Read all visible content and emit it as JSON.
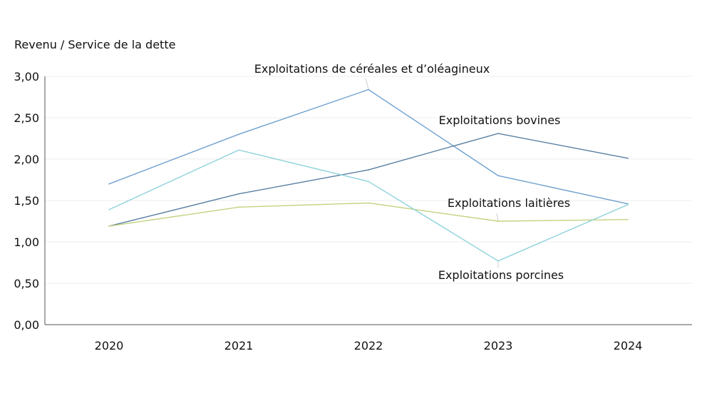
{
  "chart_data": {
    "type": "line",
    "ylabel": "Revenu / Service de la dette",
    "categories": [
      "2020",
      "2021",
      "2022",
      "2023",
      "2024"
    ],
    "ylim": [
      0,
      3
    ],
    "yticks": [
      "0,00",
      "0,50",
      "1,00",
      "1,50",
      "2,00",
      "2,50",
      "3,00"
    ],
    "grid": true,
    "series": [
      {
        "name": "Exploitations de céréales et d’oléagineux",
        "color": "#6fa0cf",
        "values": [
          1.7,
          2.3,
          2.84,
          1.8,
          1.46
        ]
      },
      {
        "name": "Exploitations bovines",
        "color": "#5a7fa3",
        "values": [
          1.19,
          1.58,
          1.87,
          2.31,
          2.01
        ]
      },
      {
        "name": "Exploitations laitières",
        "color": "#c3d27f",
        "values": [
          1.19,
          1.42,
          1.47,
          1.25,
          1.27
        ]
      },
      {
        "name": "Exploitations porcines",
        "color": "#8fd3dc",
        "values": [
          1.39,
          2.11,
          1.73,
          0.77,
          1.45
        ]
      }
    ]
  }
}
